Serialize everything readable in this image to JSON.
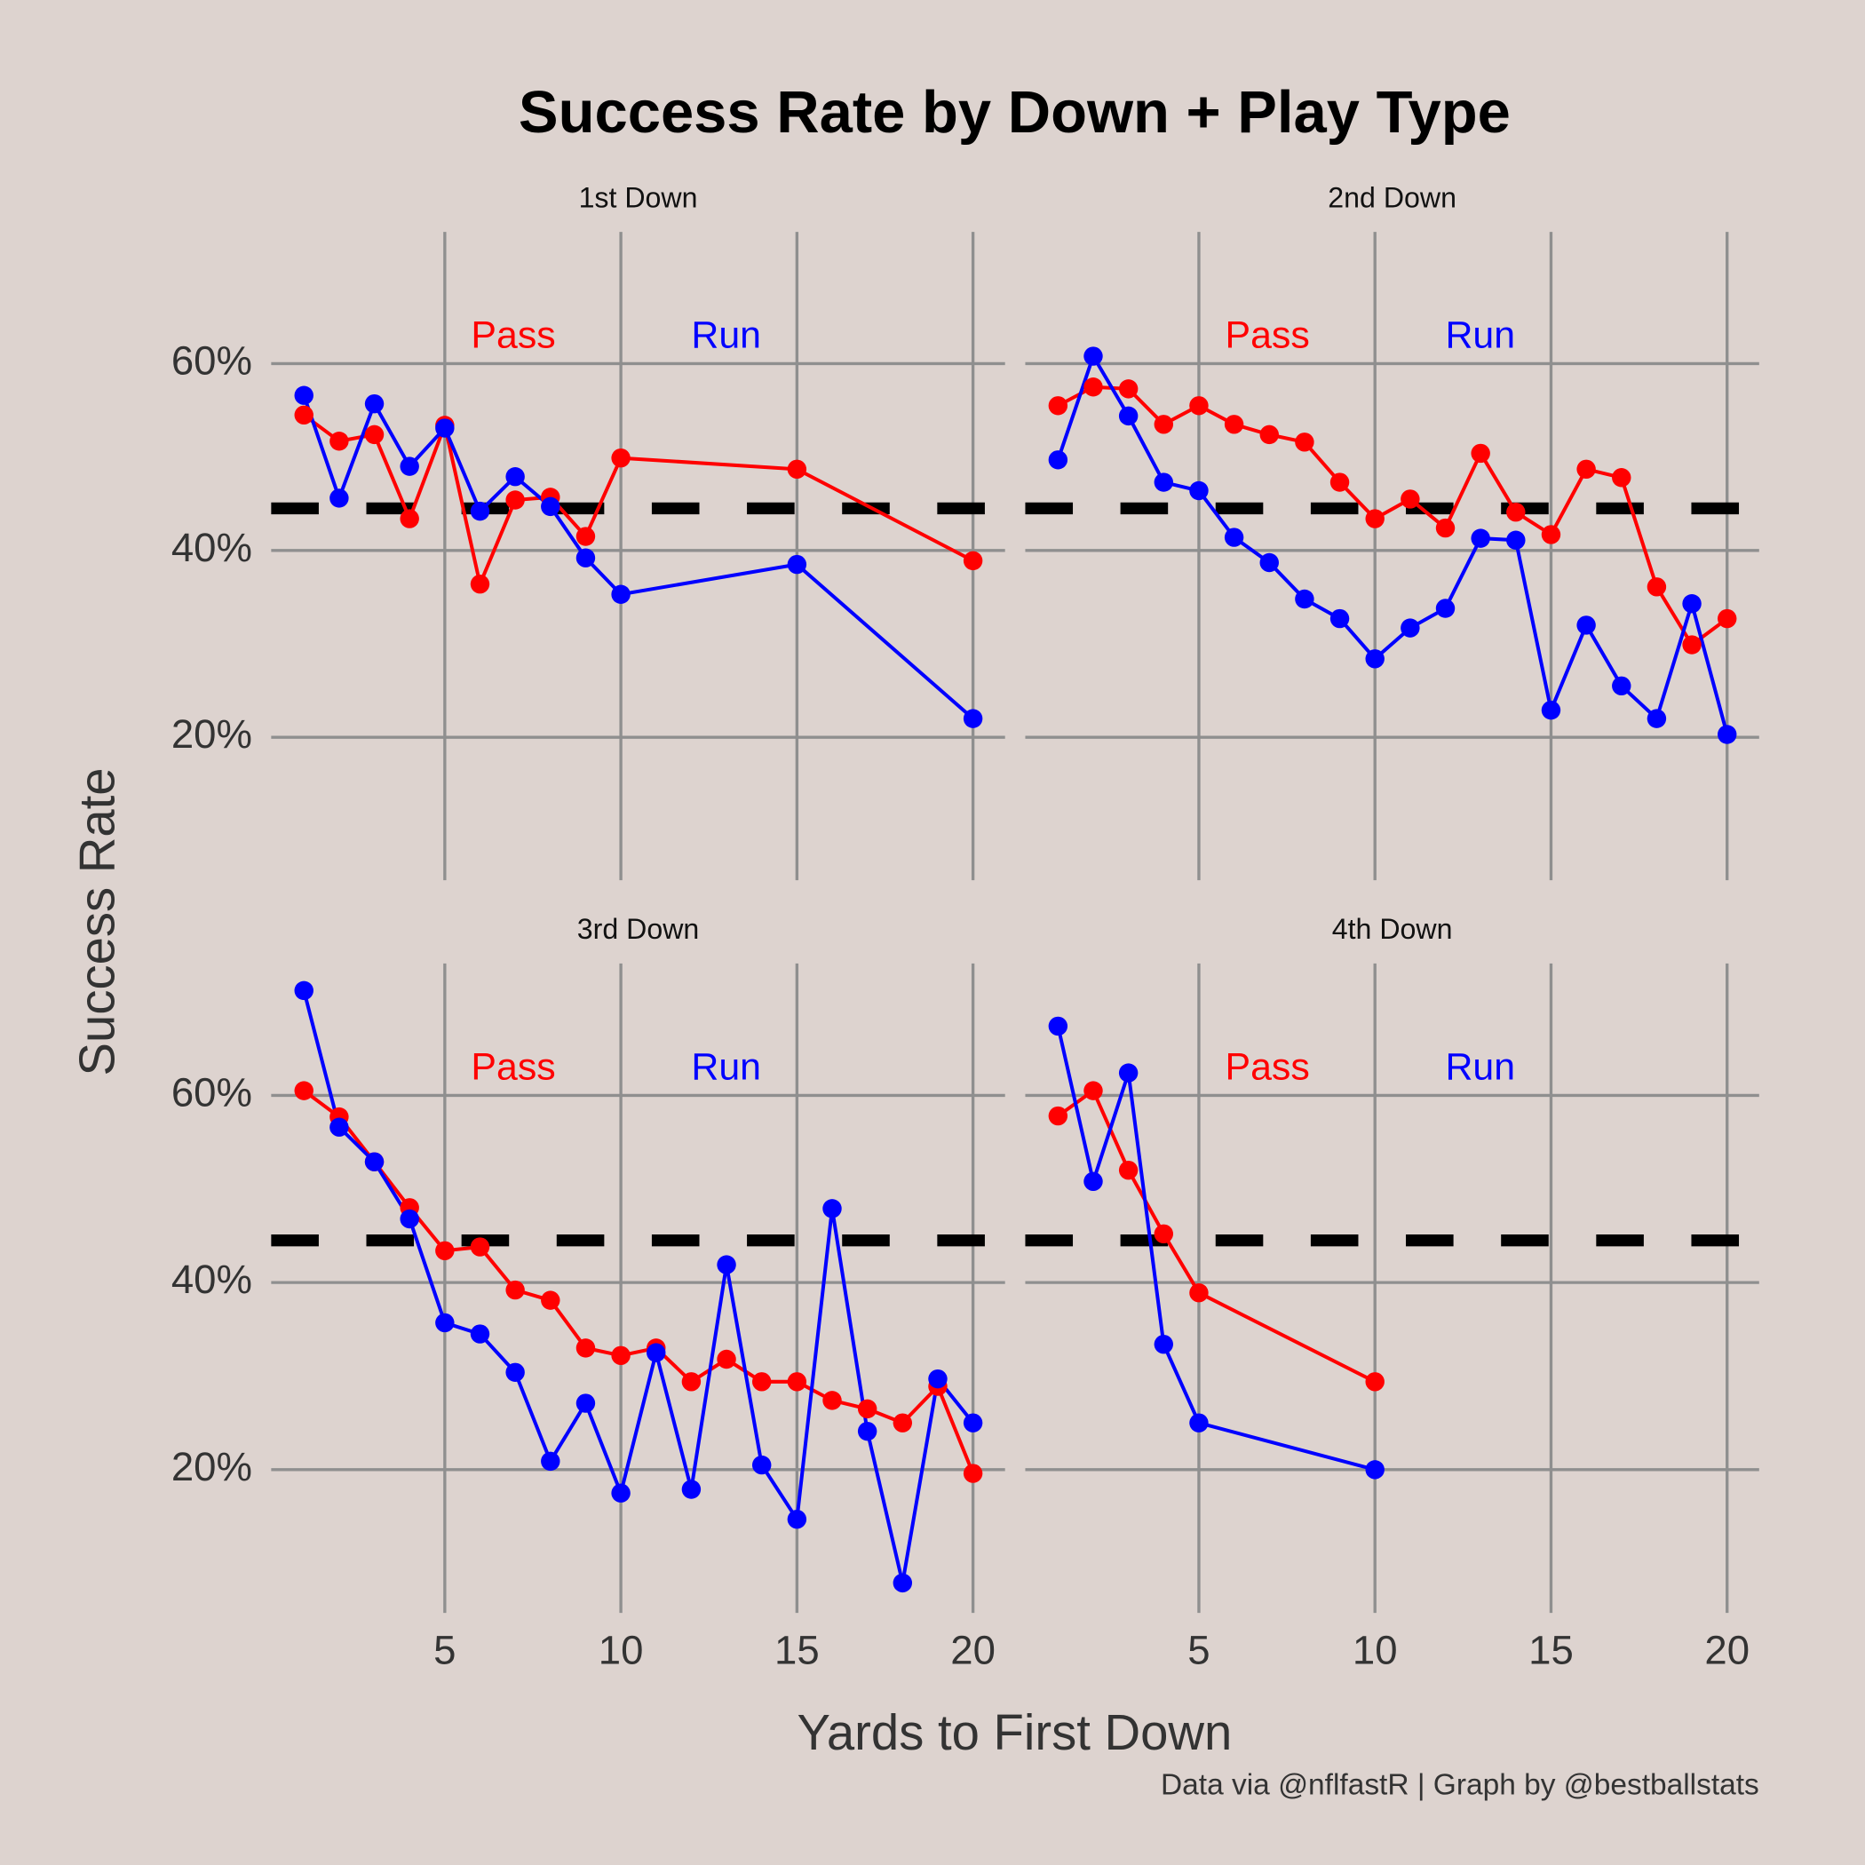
{
  "title": "Success Rate by Down + Play Type",
  "x_label": "Yards to First Down",
  "y_label": "Success Rate",
  "caption": "Data via @nflfastR | Graph by @bestballstats",
  "chart_data": [
    {
      "type": "line",
      "title": "1st Down",
      "x": [
        1,
        2,
        3,
        4,
        5,
        6,
        7,
        8,
        9,
        10,
        15,
        20
      ],
      "series": [
        {
          "name": "Pass",
          "color": "#ff0000",
          "values": [
            54.5,
            51.7,
            52.4,
            43.4,
            53.4,
            36.4,
            45.4,
            45.7,
            41.5,
            49.9,
            48.7,
            38.9
          ]
        },
        {
          "name": "Run",
          "color": "#0000ff",
          "values": [
            56.6,
            45.6,
            55.7,
            49.0,
            53.1,
            44.2,
            47.9,
            44.7,
            39.2,
            35.3,
            38.5,
            22.0
          ]
        }
      ],
      "xlim": [
        0.07,
        20.91
      ],
      "xticks": [
        5,
        10,
        15,
        20
      ],
      "ylim": [
        4.7,
        74.1
      ],
      "yticks": [
        {
          "value": 20,
          "label": "20%"
        },
        {
          "value": 40,
          "label": "40%"
        },
        {
          "value": 60,
          "label": "60%"
        }
      ],
      "reference_line": 44.5,
      "grid": true
    },
    {
      "type": "line",
      "title": "2nd Down",
      "x": [
        1,
        2,
        3,
        4,
        5,
        6,
        7,
        8,
        9,
        10,
        11,
        12,
        13,
        14,
        15,
        16,
        17,
        18,
        19,
        20
      ],
      "series": [
        {
          "name": "Pass",
          "color": "#ff0000",
          "values": [
            55.5,
            57.5,
            57.3,
            53.5,
            55.5,
            53.5,
            52.4,
            51.6,
            47.3,
            43.4,
            45.5,
            42.4,
            50.4,
            44.1,
            41.7,
            48.7,
            47.8,
            36.1,
            29.9,
            32.7
          ]
        },
        {
          "name": "Run",
          "color": "#0000ff",
          "values": [
            49.7,
            60.8,
            54.4,
            47.3,
            46.4,
            41.4,
            38.7,
            34.8,
            32.7,
            28.4,
            31.7,
            33.8,
            41.3,
            41.1,
            22.9,
            32.0,
            25.5,
            22.0,
            34.3,
            20.3
          ]
        }
      ],
      "xlim": [
        0.07,
        20.91
      ],
      "xticks": [
        5,
        10,
        15,
        20
      ],
      "ylim": [
        4.7,
        74.1
      ],
      "yticks": [
        {
          "value": 20,
          "label": "20%"
        },
        {
          "value": 40,
          "label": "40%"
        },
        {
          "value": 60,
          "label": "60%"
        }
      ],
      "reference_line": 44.5,
      "grid": true
    },
    {
      "type": "line",
      "title": "3rd Down",
      "x": [
        1,
        2,
        3,
        4,
        5,
        6,
        7,
        8,
        9,
        10,
        11,
        12,
        13,
        14,
        15,
        16,
        17,
        18,
        19,
        20
      ],
      "series": [
        {
          "name": "Pass",
          "color": "#ff0000",
          "values": [
            60.5,
            57.7,
            52.9,
            48.0,
            43.4,
            43.8,
            39.2,
            38.1,
            33.0,
            32.2,
            33.0,
            29.4,
            31.8,
            29.4,
            29.4,
            27.4,
            26.5,
            25.0,
            28.9,
            19.6
          ]
        },
        {
          "name": "Run",
          "color": "#0000ff",
          "values": [
            71.2,
            56.6,
            52.9,
            46.8,
            35.7,
            34.5,
            30.4,
            20.9,
            27.1,
            17.5,
            32.5,
            17.9,
            41.9,
            20.5,
            14.7,
            47.9,
            24.1,
            7.9,
            29.7,
            25.0
          ]
        }
      ],
      "xlim": [
        0.07,
        20.91
      ],
      "xticks": [
        5,
        10,
        15,
        20
      ],
      "ylim": [
        4.7,
        74.1
      ],
      "yticks": [
        {
          "value": 20,
          "label": "20%"
        },
        {
          "value": 40,
          "label": "40%"
        },
        {
          "value": 60,
          "label": "60%"
        }
      ],
      "reference_line": 44.5,
      "grid": true
    },
    {
      "type": "line",
      "title": "4th Down",
      "x": [
        1,
        2,
        3,
        4,
        5,
        10
      ],
      "series": [
        {
          "name": "Pass",
          "color": "#ff0000",
          "values": [
            57.8,
            60.5,
            52.0,
            45.2,
            38.9,
            29.4
          ]
        },
        {
          "name": "Run",
          "color": "#0000ff",
          "values": [
            67.4,
            50.8,
            62.4,
            33.4,
            25.0,
            20.0
          ]
        }
      ],
      "xlim": [
        0.07,
        20.91
      ],
      "xticks": [
        5,
        10,
        15,
        20
      ],
      "ylim": [
        4.7,
        74.1
      ],
      "yticks": [
        {
          "value": 20,
          "label": "20%"
        },
        {
          "value": 40,
          "label": "40%"
        },
        {
          "value": 60,
          "label": "60%"
        }
      ],
      "reference_line": 44.5,
      "grid": true
    }
  ]
}
